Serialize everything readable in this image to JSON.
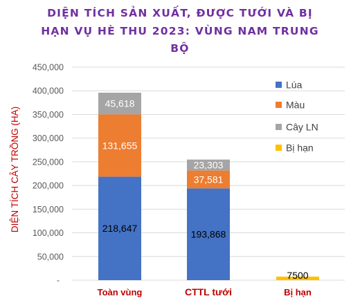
{
  "chart_data": {
    "type": "bar",
    "stacked": true,
    "title_lines": [
      "DIỆN TÍCH SẢN XUẤT, ĐƯỢC TƯỚI VÀ BỊ",
      "HẠN VỤ HÈ THU 2023: VÙNG NAM TRUNG",
      "BỘ"
    ],
    "xlabel": "",
    "ylabel": "DIỆN TÍCH CÂY TRỒNG (HA)",
    "ylim": [
      0,
      450000
    ],
    "yticks": [
      {
        "value": 0,
        "label": "-"
      },
      {
        "value": 50000,
        "label": "50,000"
      },
      {
        "value": 100000,
        "label": "100,000"
      },
      {
        "value": 150000,
        "label": "150,000"
      },
      {
        "value": 200000,
        "label": "200,000"
      },
      {
        "value": 250000,
        "label": "250,000"
      },
      {
        "value": 300000,
        "label": "300,000"
      },
      {
        "value": 350000,
        "label": "350,000"
      },
      {
        "value": 400000,
        "label": "400,000"
      },
      {
        "value": 450000,
        "label": "450,000"
      }
    ],
    "grid": true,
    "legend_position": "right",
    "categories": [
      "Toàn vùng",
      "CTTL tưới",
      "Bị hạn"
    ],
    "series": [
      {
        "name": "Lúa",
        "color": "#4472c4",
        "label_color": "#000000",
        "values": [
          218647,
          193868,
          null
        ],
        "labels": [
          "218,647",
          "193,868",
          ""
        ]
      },
      {
        "name": "Màu",
        "color": "#ed7d31",
        "label_color": "#ffffff",
        "values": [
          131655,
          37581,
          null
        ],
        "labels": [
          "131,655",
          "37,581",
          ""
        ]
      },
      {
        "name": "Cây LN",
        "color": "#a5a5a5",
        "label_color": "#ffffff",
        "values": [
          45618,
          23303,
          null
        ],
        "labels": [
          "45,618",
          "23,303",
          ""
        ]
      },
      {
        "name": "Bị hạn",
        "color": "#ffc000",
        "label_color": "#000000",
        "values": [
          null,
          null,
          7500
        ],
        "labels": [
          "",
          "",
          "7500"
        ]
      }
    ]
  }
}
